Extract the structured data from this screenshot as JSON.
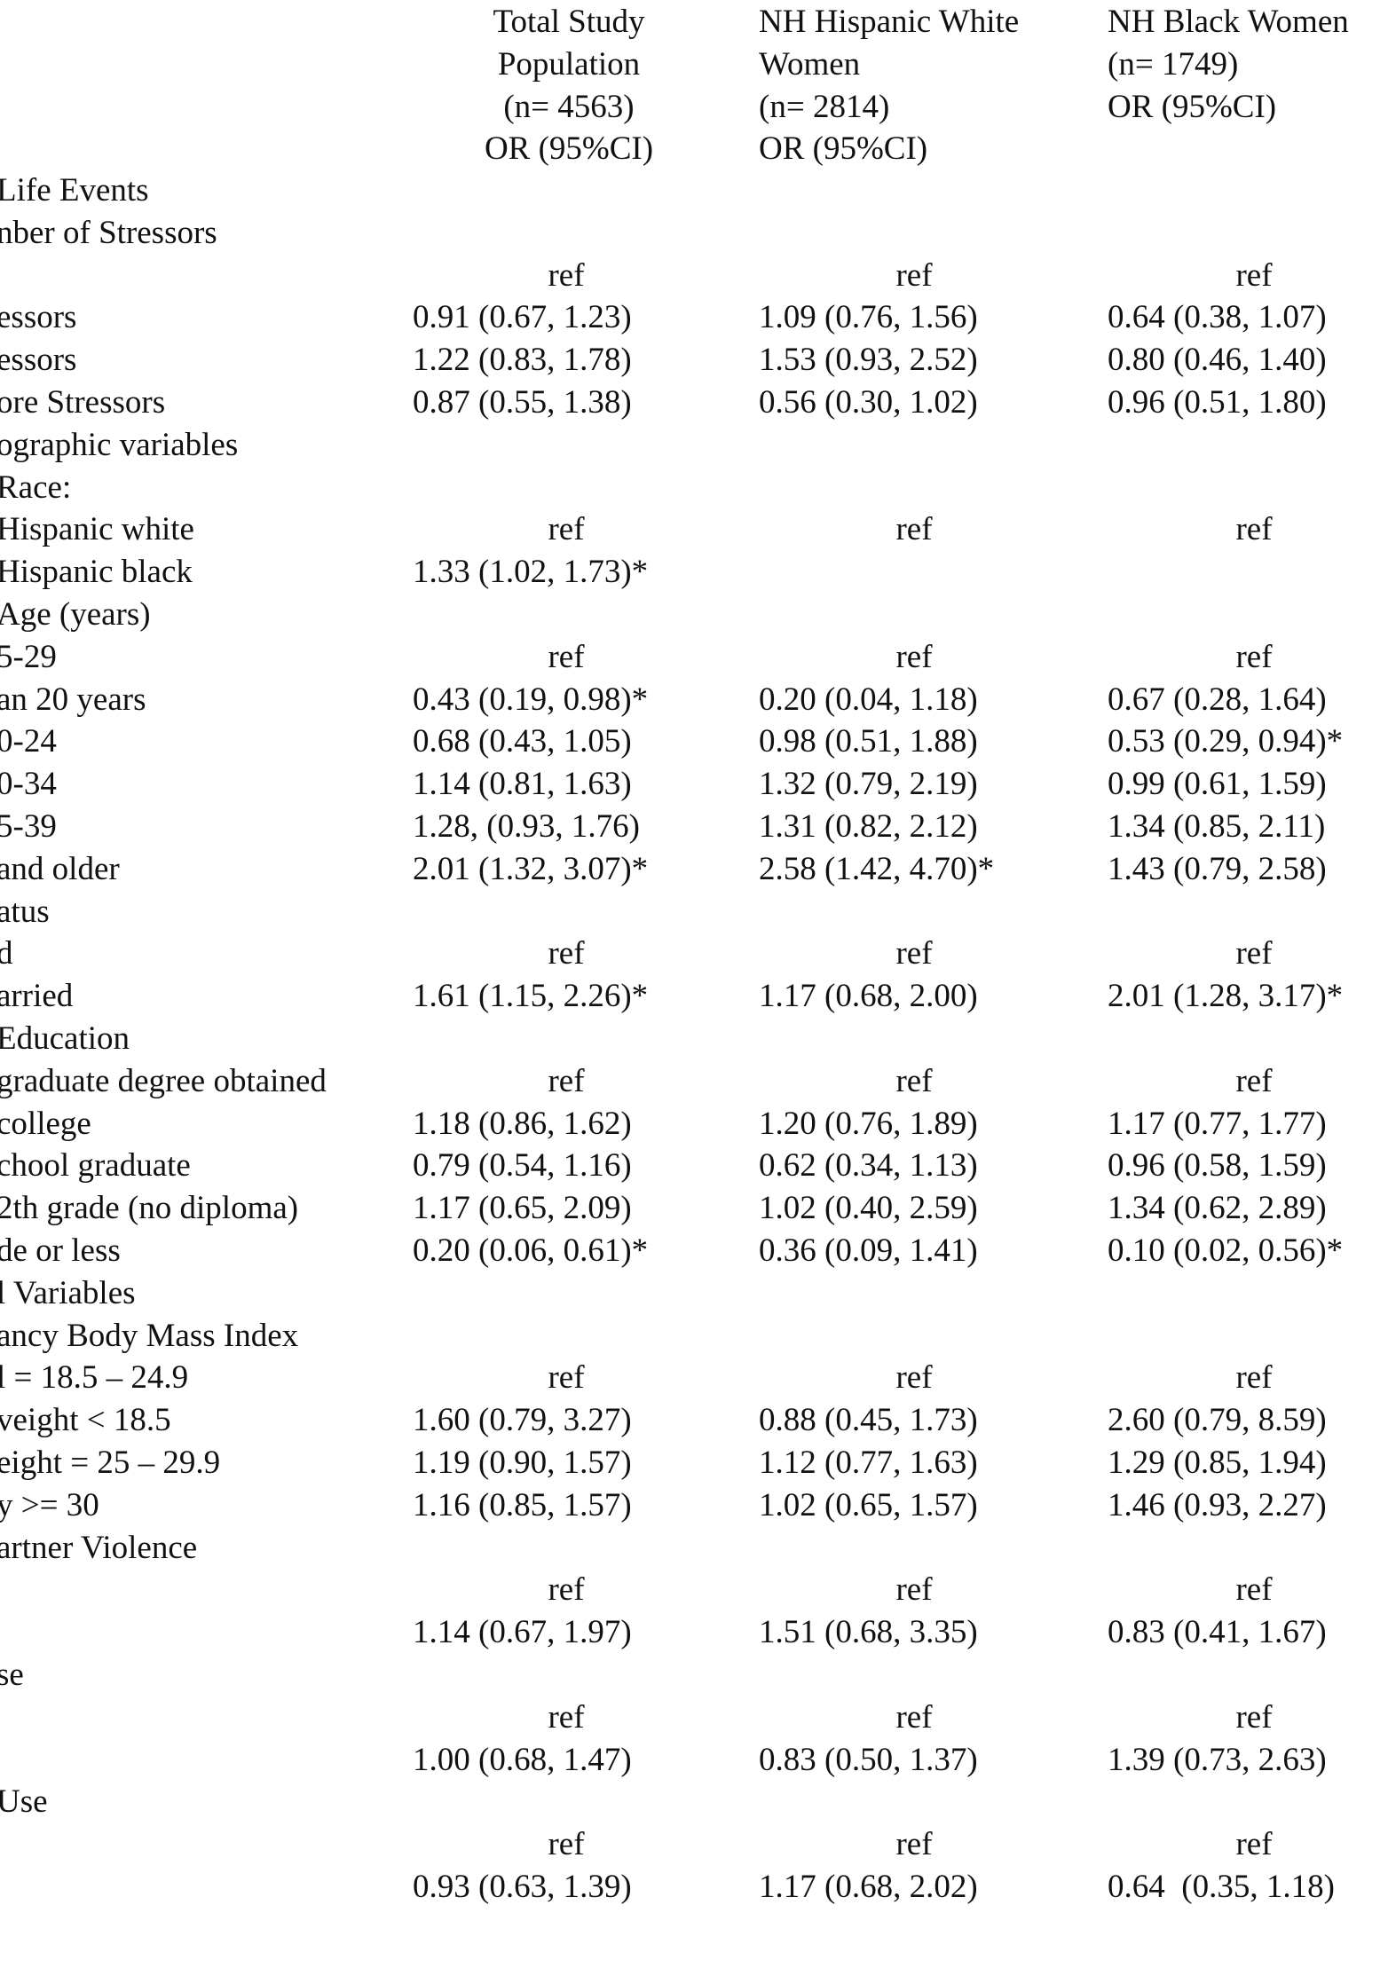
{
  "header": {
    "col1": [
      "Total Study",
      "Population",
      "(n= 4563)",
      "OR (95%CI)"
    ],
    "col2": [
      "NH Hispanic White",
      "Women",
      "(n= 2814)",
      "OR (95%CI)"
    ],
    "col3": [
      "NH Black Women",
      "(n= 1749)",
      "OR (95%CI)"
    ]
  },
  "rows": [
    {
      "label": "Life Events",
      "c1": "",
      "c2": "",
      "c3": ""
    },
    {
      "label": "nber of Stressors",
      "c1": "",
      "c2": "",
      "c3": ""
    },
    {
      "label": "",
      "c1": "ref",
      "c2": "ref",
      "c3": "ref"
    },
    {
      "label": "essors",
      "c1": "0.91 (0.67, 1.23)",
      "c2": "1.09 (0.76, 1.56)",
      "c3": "0.64 (0.38, 1.07)"
    },
    {
      "label": "essors",
      "c1": "1.22 (0.83, 1.78)",
      "c2": "1.53 (0.93, 2.52)",
      "c3": "0.80 (0.46, 1.40)"
    },
    {
      "label": "ore Stressors",
      "c1": "0.87 (0.55, 1.38)",
      "c2": "0.56 (0.30, 1.02)",
      "c3": "0.96 (0.51, 1.80)"
    },
    {
      "label": "ographic variables",
      "c1": "",
      "c2": "",
      "c3": ""
    },
    {
      "label": "Race:",
      "c1": "",
      "c2": "",
      "c3": ""
    },
    {
      "label": "Hispanic white",
      "c1": "ref",
      "c2": "ref",
      "c3": "ref"
    },
    {
      "label": "Hispanic black",
      "c1": "1.33 (1.02, 1.73)*",
      "c2": "",
      "c3": ""
    },
    {
      "label": "Age (years)",
      "c1": "",
      "c2": "",
      "c3": ""
    },
    {
      "label": "5-29",
      "c1": "ref",
      "c2": "ref",
      "c3": "ref"
    },
    {
      "label": "an 20 years",
      "c1": "0.43 (0.19, 0.98)*",
      "c2": "0.20 (0.04, 1.18)",
      "c3": "0.67 (0.28, 1.64)"
    },
    {
      "label": "0-24",
      "c1": "0.68 (0.43, 1.05)",
      "c2": "0.98 (0.51, 1.88)",
      "c3": "0.53 (0.29, 0.94)*"
    },
    {
      "label": "0-34",
      "c1": "1.14 (0.81, 1.63)",
      "c2": "1.32 (0.79, 2.19)",
      "c3": "0.99 (0.61, 1.59)"
    },
    {
      "label": "5-39",
      "c1": "1.28, (0.93, 1.76)",
      "c2": "1.31 (0.82, 2.12)",
      "c3": "1.34 (0.85, 2.11)"
    },
    {
      "label": "and older",
      "c1": "2.01 (1.32, 3.07)*",
      "c2": "2.58 (1.42, 4.70)*",
      "c3": "1.43 (0.79, 2.58)"
    },
    {
      "label": "atus",
      "c1": "",
      "c2": "",
      "c3": ""
    },
    {
      "label": "d",
      "c1": "ref",
      "c2": "ref",
      "c3": "ref"
    },
    {
      "label": "arried",
      "c1": "1.61 (1.15, 2.26)*",
      "c2": "1.17 (0.68, 2.00)",
      "c3": "2.01 (1.28, 3.17)*"
    },
    {
      "label": "Education",
      "c1": "",
      "c2": "",
      "c3": ""
    },
    {
      "label": "graduate degree obtained",
      "c1": "ref",
      "c2": "ref",
      "c3": "ref"
    },
    {
      "label": "college",
      "c1": "1.18 (0.86, 1.62)",
      "c2": "1.20 (0.76, 1.89)",
      "c3": "1.17 (0.77, 1.77)"
    },
    {
      "label": "chool graduate",
      "c1": "0.79 (0.54, 1.16)",
      "c2": "0.62 (0.34, 1.13)",
      "c3": "0.96 (0.58, 1.59)"
    },
    {
      "label": "2th grade (no diploma)",
      "c1": "1.17 (0.65, 2.09)",
      "c2": "1.02 (0.40, 2.59)",
      "c3": "1.34 (0.62, 2.89)"
    },
    {
      "label": "de or less",
      "c1": "0.20 (0.06, 0.61)*",
      "c2": "0.36 (0.09, 1.41)",
      "c3": "0.10 (0.02, 0.56)*"
    },
    {
      "label": "l Variables",
      "c1": "",
      "c2": "",
      "c3": ""
    },
    {
      "label": "ancy Body Mass Index",
      "c1": "",
      "c2": "",
      "c3": ""
    },
    {
      "label": "l = 18.5 – 24.9",
      "c1": "ref",
      "c2": "ref",
      "c3": "ref"
    },
    {
      "label": "veight < 18.5",
      "c1": "1.60 (0.79, 3.27)",
      "c2": "0.88 (0.45, 1.73)",
      "c3": "2.60 (0.79, 8.59)"
    },
    {
      "label": "eight = 25 – 29.9",
      "c1": "1.19 (0.90, 1.57)",
      "c2": "1.12 (0.77, 1.63)",
      "c3": "1.29 (0.85, 1.94)"
    },
    {
      "label": "y >= 30",
      "c1": "1.16 (0.85, 1.57)",
      "c2": "1.02 (0.65, 1.57)",
      "c3": "1.46 (0.93, 2.27)"
    },
    {
      "label": "artner Violence",
      "c1": "",
      "c2": "",
      "c3": ""
    },
    {
      "label": "",
      "c1": "ref",
      "c2": "ref",
      "c3": "ref"
    },
    {
      "label": "",
      "c1": "1.14 (0.67, 1.97)",
      "c2": "1.51 (0.68, 3.35)",
      "c3": "0.83 (0.41, 1.67)"
    },
    {
      "label": "se",
      "c1": "",
      "c2": "",
      "c3": ""
    },
    {
      "label": "",
      "c1": "ref",
      "c2": "ref",
      "c3": "ref"
    },
    {
      "label": "",
      "c1": "1.00 (0.68, 1.47)",
      "c2": "0.83 (0.50, 1.37)",
      "c3": "1.39 (0.73, 2.63)"
    },
    {
      "label": "Use",
      "c1": "",
      "c2": "",
      "c3": ""
    },
    {
      "label": "",
      "c1": "ref",
      "c2": "ref",
      "c3": "ref"
    },
    {
      "label": "",
      "c1": "0.93 (0.63, 1.39)",
      "c2": "1.17 (0.68, 2.02)",
      "c3": "0.64  (0.35, 1.18)"
    }
  ]
}
